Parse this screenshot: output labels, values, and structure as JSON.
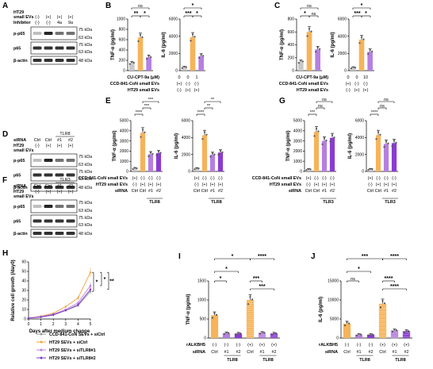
{
  "panels": {
    "A": {
      "letter": "A",
      "row_labels": [
        "HT29",
        "small EVs",
        "Inhibitor"
      ],
      "col_vals": [
        [
          "(-)",
          "(+)",
          "(+)",
          "(+)"
        ],
        [
          "(-)",
          "(-)",
          "4a",
          "9a"
        ]
      ],
      "blots": [
        "p-p65",
        "p65",
        "β-actin"
      ],
      "kda": [
        "75 kDa",
        "63 kDa",
        "75 kDa",
        "63 kDa",
        "48 kDa"
      ]
    },
    "B": {
      "letter": "B",
      "ylabels": [
        "TNF-α (pg/ml)",
        "IL-6 (pg/ml)"
      ],
      "yticks_tnf": [
        "0",
        "200",
        "400",
        "600",
        "800",
        "1000"
      ],
      "yticks_il6": [
        "0",
        "2000",
        "4000",
        "6000"
      ],
      "row_labels": [
        "CU-CPT-9a (μM)",
        "CCD-841-CoN small EVs",
        "HT29 small EVs"
      ],
      "row_vals": [
        [
          "0",
          "0",
          "1"
        ],
        [
          "(+)",
          "(-)",
          "(-)"
        ],
        [
          "(-)",
          "(+)",
          "(+)"
        ]
      ],
      "sig": [
        "ns",
        "**",
        "*",
        "*",
        "***",
        "*"
      ]
    },
    "C": {
      "letter": "C",
      "ylabels": [
        "TNF-α (pg/ml)",
        "IL-6 (pg/ml)"
      ],
      "yticks_tnf": [
        "0",
        "200",
        "400",
        "600",
        "800"
      ],
      "yticks_il6": [
        "0",
        "2000",
        "4000",
        "6000"
      ],
      "row_labels": [
        "CU-CPT-9a (μM)",
        "CCD-841-CoN small EVs",
        "HT29 small EVs"
      ],
      "row_vals": [
        [
          "0",
          "0",
          "10"
        ],
        [
          "(+)",
          "(-)",
          "(-)"
        ],
        [
          "(-)",
          "(+)",
          "(+)"
        ]
      ],
      "sig": [
        "ns",
        "*",
        "ns",
        "*",
        "***",
        "*"
      ]
    },
    "D": {
      "letter": "D",
      "header_top": "TLR8",
      "row_labels": [
        "siRNA",
        "HT29",
        "small EVs"
      ],
      "col_vals": [
        [
          "Ctrl",
          "Ctrl",
          "#1",
          "#2"
        ],
        [
          "(-)",
          "(+)",
          "(+)",
          "(+)"
        ]
      ],
      "blots": [
        "p-p65",
        "p65",
        "β-actin"
      ],
      "kda": [
        "75 kDa",
        "63 kDa",
        "75 kDa",
        "63 kDa",
        "48 kDa"
      ]
    },
    "E": {
      "letter": "E",
      "ylabels": [
        "TNF-α (pg/ml)",
        "IL-6 (pg/ml)"
      ],
      "yticks_tnf": [
        "0",
        "1000",
        "2000",
        "3000",
        "4000",
        "5000"
      ],
      "yticks_il6": [
        "0",
        "2000",
        "4000",
        "6000"
      ],
      "row_labels": [
        "CCD-841-CoN small EVs",
        "HT29 small EVs",
        "siRNA"
      ],
      "row_vals": [
        [
          "(+)",
          "(-)",
          "(-)",
          "(-)"
        ],
        [
          "(-)",
          "(+)",
          "(+)",
          "(+)"
        ],
        [
          "Ctrl",
          "Ctrl",
          "#1",
          "#2"
        ]
      ],
      "group": "TLR8",
      "sig": [
        "****",
        "***",
        "***",
        "****",
        "**",
        "**"
      ]
    },
    "F": {
      "letter": "F",
      "header_top": "TLR3",
      "row_labels": [
        "siRNA",
        "HT29",
        "small EVs"
      ],
      "col_vals": [
        [
          "Ctrl",
          "Ctrl",
          "#1",
          "#2"
        ],
        [
          "(-)",
          "(+)",
          "(+)",
          "(+)"
        ]
      ],
      "blots": [
        "p-p65",
        "p65",
        "β-actin"
      ],
      "kda": [
        "75 kDa",
        "63 kDa",
        "75 kDa",
        "63 kDa",
        "48 kDa"
      ]
    },
    "G": {
      "letter": "G",
      "ylabels": [
        "TNF-α (pg/ml)",
        "IL-6 (pg/ml)"
      ],
      "yticks_tnf": [
        "0",
        "1000",
        "2000",
        "3000",
        "4000",
        "5000"
      ],
      "yticks_il6": [
        "0",
        "2000",
        "4000",
        "6000"
      ],
      "row_labels": [
        "CCD-841-CoN small EVs",
        "HT29 small EVs",
        "siRNA"
      ],
      "row_vals": [
        [
          "(+)",
          "(-)",
          "(-)",
          "(-)"
        ],
        [
          "(-)",
          "(+)",
          "(+)",
          "(+)"
        ],
        [
          "Ctrl",
          "Ctrl",
          "#1",
          "#2"
        ]
      ],
      "group": "TLR3",
      "sig": [
        "***",
        "ns",
        "ns",
        "****",
        "ns",
        "ns"
      ]
    },
    "H": {
      "letter": "H",
      "ylabel": "Relative cell growth (/day0)",
      "xlabel": "Days after medium change",
      "yticks": [
        "0",
        "10",
        "20",
        "30",
        "40",
        "50",
        "60"
      ],
      "xticks": [
        "0",
        "1",
        "2",
        "3",
        "4",
        "5"
      ],
      "legend": [
        "CCD-841-CoN SEVs + siCtrl",
        "HT29 SEVs + siCtrl",
        "HT29 SEVs + siTLR8#1",
        "HT29 SEVs + siTLR8#2"
      ],
      "sig": [
        "*",
        "*",
        "**"
      ]
    },
    "I": {
      "letter": "I",
      "ylabel": "TNF-α (pg/ml)",
      "yticks": [
        "0",
        "500",
        "1000",
        "1500"
      ],
      "row_labels": [
        "rALKBH5",
        "siRNA"
      ],
      "row_vals": [
        [
          "(-)",
          "(-)",
          "(-)",
          "(+)",
          "(+)",
          "(+)"
        ],
        [
          "Ctrl",
          "#1",
          "#2",
          "Ctrl",
          "#1",
          "#2"
        ]
      ],
      "groups": [
        "TLR8",
        "TLR8"
      ],
      "sig": [
        "*",
        "****",
        "*",
        "*",
        "***",
        "***"
      ]
    },
    "J": {
      "letter": "J",
      "ylabel": "IL-6 (pg/ml)",
      "yticks": [
        "0",
        "5000",
        "10000",
        "15000"
      ],
      "row_labels": [
        "rALKBH5",
        "siRNA"
      ],
      "row_vals": [
        [
          "(-)",
          "(-)",
          "(-)",
          "(+)",
          "(+)",
          "(+)"
        ],
        [
          "Ctrl",
          "#1",
          "#2",
          "Ctrl",
          "#1",
          "#2"
        ]
      ],
      "groups": [
        "TLR8",
        "TLR8"
      ],
      "sig": [
        "***",
        "****",
        "ns",
        "*",
        "****",
        "****"
      ]
    }
  },
  "colors": {
    "grey": "#c8c8c8",
    "orange": "#f6b35a",
    "purple_light": "#b57fe0",
    "purple_dark": "#8a3bd1",
    "line_grey": "#9a9a9a",
    "line_orange": "#f2a33a",
    "line_purple1": "#c07be6",
    "line_purple2": "#7d3bc8"
  },
  "chart_data": [
    {
      "panel": "B",
      "type": "bar",
      "title": "",
      "ylabel": "TNF-α (pg/ml)",
      "categories": [
        "CCD-EVs",
        "HT29-EVs",
        "HT29-EVs+9a 1μM"
      ],
      "values": [
        150,
        640,
        260
      ],
      "ylim": [
        0,
        1000
      ]
    },
    {
      "panel": "B",
      "type": "bar",
      "title": "",
      "ylabel": "IL-6 (pg/ml)",
      "categories": [
        "CCD-EVs",
        "HT29-EVs",
        "HT29-EVs+9a 1μM"
      ],
      "values": [
        400,
        3900,
        1700
      ],
      "ylim": [
        0,
        6000
      ]
    },
    {
      "panel": "C",
      "type": "bar",
      "title": "",
      "ylabel": "TNF-α (pg/ml)",
      "categories": [
        "CCD-EVs",
        "HT29-EVs",
        "HT29-EVs+9a 10μM"
      ],
      "values": [
        140,
        600,
        330
      ],
      "ylim": [
        0,
        800
      ]
    },
    {
      "panel": "C",
      "type": "bar",
      "title": "",
      "ylabel": "IL-6 (pg/ml)",
      "categories": [
        "CCD-EVs",
        "HT29-EVs",
        "HT29-EVs+9a 10μM"
      ],
      "values": [
        350,
        3600,
        2200
      ],
      "ylim": [
        0,
        6000
      ]
    },
    {
      "panel": "E",
      "type": "bar",
      "title": "",
      "ylabel": "TNF-α (pg/ml)",
      "categories": [
        "CCD Ctrl",
        "HT29 Ctrl",
        "HT29 #1",
        "HT29 #2"
      ],
      "values": [
        300,
        3800,
        1700,
        1800
      ],
      "ylim": [
        0,
        5000
      ]
    },
    {
      "panel": "E",
      "type": "bar",
      "title": "",
      "ylabel": "IL-6 (pg/ml)",
      "categories": [
        "CCD Ctrl",
        "HT29 Ctrl",
        "HT29 #1",
        "HT29 #2"
      ],
      "values": [
        400,
        5000,
        2300,
        2600
      ],
      "ylim": [
        0,
        7000
      ]
    },
    {
      "panel": "G",
      "type": "bar",
      "title": "",
      "ylabel": "TNF-α (pg/ml)",
      "categories": [
        "CCD Ctrl",
        "HT29 Ctrl",
        "HT29 #1",
        "HT29 #2"
      ],
      "values": [
        200,
        3900,
        3000,
        3300
      ],
      "ylim": [
        0,
        5000
      ]
    },
    {
      "panel": "G",
      "type": "bar",
      "title": "",
      "ylabel": "IL-6 (pg/ml)",
      "categories": [
        "CCD Ctrl",
        "HT29 Ctrl",
        "HT29 #1",
        "HT29 #2"
      ],
      "values": [
        300,
        5000,
        3800,
        3900
      ],
      "ylim": [
        0,
        7000
      ]
    },
    {
      "panel": "H",
      "type": "line",
      "title": "",
      "xlabel": "Days after medium change",
      "ylabel": "Relative cell growth (/day0)",
      "x": [
        0,
        1,
        2,
        3,
        4,
        5
      ],
      "ylim": [
        0,
        60
      ],
      "series": [
        {
          "name": "CCD-841-CoN SEVs + siCtrl",
          "values": [
            1,
            2,
            4,
            9,
            14,
            29
          ]
        },
        {
          "name": "HT29 SEVs + siCtrl",
          "values": [
            1,
            3,
            6,
            13,
            22,
            49
          ]
        },
        {
          "name": "HT29 SEVs + siTLR8#1",
          "values": [
            1,
            2.5,
            5,
            10,
            17,
            35
          ]
        },
        {
          "name": "HT29 SEVs + siTLR8#2",
          "values": [
            1,
            2,
            4.5,
            9,
            15,
            31
          ]
        }
      ]
    },
    {
      "panel": "I",
      "type": "bar",
      "title": "",
      "ylabel": "TNF-α (pg/ml)",
      "categories": [
        "(-) Ctrl",
        "(-) #1",
        "(-) #2",
        "(+) Ctrl",
        "(+) #1",
        "(+) #2"
      ],
      "values": [
        600,
        130,
        120,
        1000,
        140,
        120
      ],
      "ylim": [
        0,
        1500
      ]
    },
    {
      "panel": "J",
      "type": "bar",
      "title": "",
      "ylabel": "IL-6 (pg/ml)",
      "categories": [
        "(-) Ctrl",
        "(-) #1",
        "(-) #2",
        "(+) Ctrl",
        "(+) #1",
        "(+) #2"
      ],
      "values": [
        3800,
        900,
        900,
        9000,
        2000,
        1800
      ],
      "ylim": [
        0,
        15000
      ]
    }
  ]
}
